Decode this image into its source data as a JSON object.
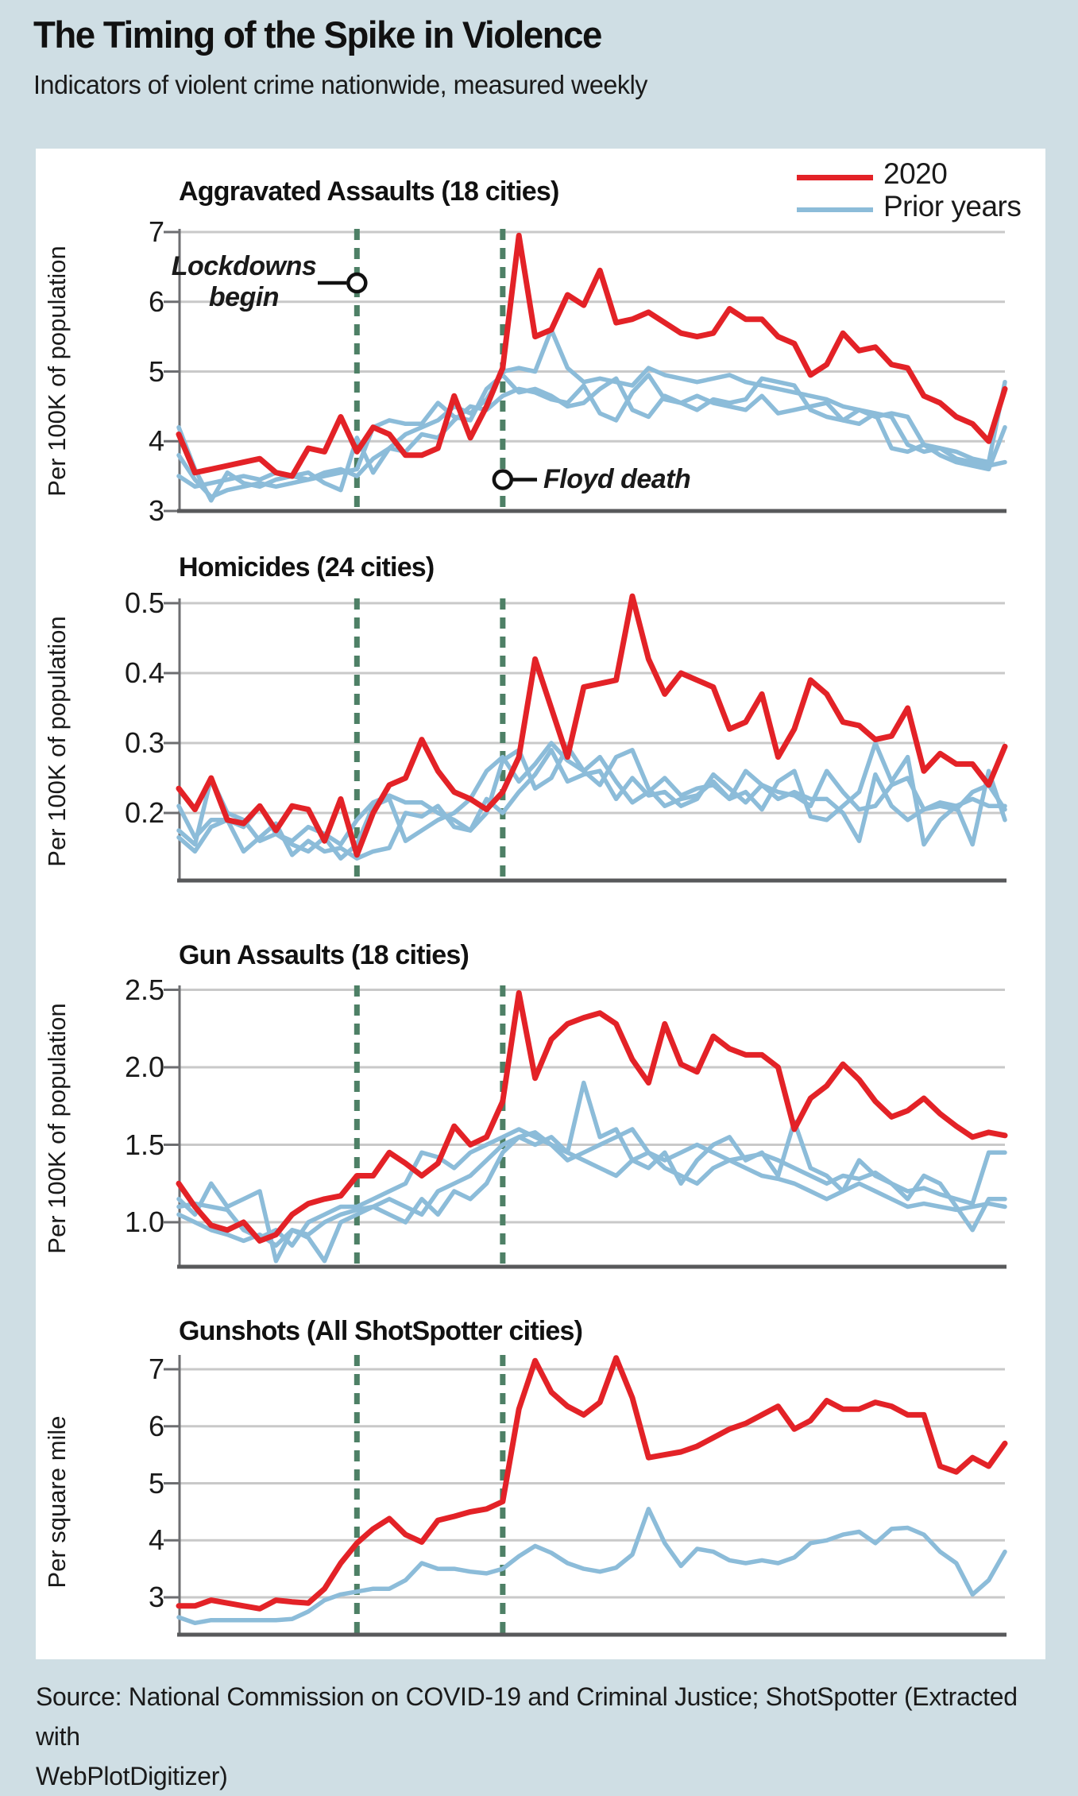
{
  "page": {
    "title": "The Timing of the Spike in Violence",
    "subtitle": "Indicators of violent crime nationwide, measured weekly",
    "source": "Source: National Commission on COVID-19 and Criminal Justice; ShotSpotter (Extracted with\nWebPlotDigitizer)"
  },
  "colors": {
    "red_2020": "#e32227",
    "blue_prior": "#8cbcd9",
    "green_dash": "#4e8066",
    "gridline": "#c9c9c9",
    "axis": "#58595b",
    "page_background": "#cfdee4",
    "panel_background": "#ffffff"
  },
  "legend": {
    "items": [
      {
        "label": "2020",
        "color": "#e32227"
      },
      {
        "label": "Prior years",
        "color": "#8cbcd9"
      }
    ]
  },
  "annotations": {
    "lockdowns": {
      "line1": "Lockdowns",
      "line2": "begin",
      "week": 12
    },
    "floyd": {
      "label": "Floyd death",
      "week": 21
    }
  },
  "chart_data": [
    {
      "type": "line",
      "title": "Aggravated Assaults (18 cities)",
      "ylabel": "Per 100K of population",
      "x_unit": "week of year",
      "x_range": [
        1,
        52
      ],
      "grid": true,
      "y_ticks": [
        3,
        4,
        5,
        6,
        7
      ],
      "y_tick_labels": [
        "3",
        "4",
        "5",
        "6",
        "7"
      ],
      "series": [
        {
          "name": "2020",
          "color_key": "red_2020",
          "values": [
            4.1,
            3.55,
            3.6,
            3.65,
            3.7,
            3.75,
            3.55,
            3.5,
            3.9,
            3.85,
            4.35,
            3.85,
            4.2,
            4.1,
            3.8,
            3.8,
            3.9,
            4.65,
            4.05,
            4.5,
            5.05,
            6.95,
            5.5,
            5.6,
            6.1,
            5.95,
            6.45,
            5.7,
            5.75,
            5.85,
            5.7,
            5.55,
            5.5,
            5.55,
            5.9,
            5.75,
            5.75,
            5.5,
            5.4,
            4.95,
            5.1,
            5.55,
            5.3,
            5.35,
            5.1,
            5.05,
            4.65,
            4.55,
            4.35,
            4.25,
            4.0,
            4.75
          ]
        },
        {
          "name": "Prior year A",
          "color_key": "blue_prior",
          "values": [
            3.5,
            3.35,
            3.4,
            3.45,
            3.5,
            3.45,
            3.55,
            3.5,
            3.45,
            3.55,
            3.6,
            3.5,
            3.75,
            3.9,
            4.1,
            4.2,
            4.3,
            4.5,
            4.4,
            4.6,
            5.0,
            5.05,
            5.0,
            5.6,
            5.05,
            4.85,
            4.9,
            4.85,
            4.8,
            5.05,
            4.95,
            4.9,
            4.85,
            4.9,
            4.95,
            4.85,
            4.8,
            4.75,
            4.7,
            4.65,
            4.6,
            4.5,
            4.45,
            4.35,
            4.4,
            4.35,
            3.95,
            3.9,
            3.85,
            3.75,
            3.7,
            4.85
          ]
        },
        {
          "name": "Prior year B",
          "color_key": "blue_prior",
          "values": [
            4.2,
            3.6,
            3.15,
            3.55,
            3.4,
            3.35,
            3.45,
            3.5,
            3.55,
            3.4,
            3.3,
            4.05,
            3.55,
            3.9,
            3.85,
            4.1,
            4.05,
            4.3,
            4.5,
            4.45,
            4.65,
            4.75,
            4.7,
            4.6,
            4.55,
            4.8,
            4.4,
            4.3,
            4.7,
            4.95,
            4.6,
            4.55,
            4.45,
            4.6,
            4.55,
            4.6,
            4.9,
            4.85,
            4.8,
            4.45,
            4.35,
            4.3,
            4.45,
            4.4,
            3.9,
            3.85,
            3.95,
            3.8,
            3.7,
            3.65,
            3.6,
            4.2
          ]
        },
        {
          "name": "Prior year C",
          "color_key": "blue_prior",
          "values": [
            3.8,
            3.45,
            3.2,
            3.3,
            3.35,
            3.4,
            3.35,
            3.4,
            3.45,
            3.5,
            3.55,
            3.6,
            4.2,
            4.3,
            4.25,
            4.25,
            4.55,
            4.35,
            4.3,
            4.75,
            4.95,
            4.7,
            4.75,
            4.65,
            4.5,
            4.55,
            4.75,
            4.9,
            4.45,
            4.35,
            4.65,
            4.55,
            4.65,
            4.55,
            4.5,
            4.45,
            4.65,
            4.4,
            4.45,
            4.5,
            4.55,
            4.3,
            4.25,
            4.4,
            4.35,
            3.95,
            3.85,
            3.9,
            3.75,
            3.7,
            3.65,
            3.7
          ]
        }
      ]
    },
    {
      "type": "line",
      "title": "Homicides (24 cities)",
      "ylabel": "Per 100K of population",
      "x_unit": "week of year",
      "x_range": [
        1,
        52
      ],
      "grid": true,
      "y_ticks": [
        0.2,
        0.3,
        0.4,
        0.5
      ],
      "y_tick_labels": [
        "0.2",
        "0.3",
        "0.4",
        "0.5"
      ],
      "series": [
        {
          "name": "2020",
          "color_key": "red_2020",
          "values": [
            0.235,
            0.205,
            0.25,
            0.19,
            0.185,
            0.21,
            0.175,
            0.21,
            0.205,
            0.16,
            0.22,
            0.14,
            0.2,
            0.24,
            0.25,
            0.305,
            0.26,
            0.23,
            0.22,
            0.205,
            0.23,
            0.28,
            0.42,
            0.35,
            0.28,
            0.38,
            0.385,
            0.39,
            0.51,
            0.42,
            0.37,
            0.4,
            0.39,
            0.38,
            0.32,
            0.33,
            0.37,
            0.28,
            0.32,
            0.39,
            0.37,
            0.33,
            0.325,
            0.305,
            0.31,
            0.35,
            0.26,
            0.285,
            0.27,
            0.27,
            0.24,
            0.295
          ]
        },
        {
          "name": "Prior year A",
          "color_key": "blue_prior",
          "values": [
            0.21,
            0.165,
            0.19,
            0.19,
            0.18,
            0.21,
            0.17,
            0.16,
            0.18,
            0.17,
            0.155,
            0.19,
            0.215,
            0.225,
            0.215,
            0.215,
            0.2,
            0.19,
            0.175,
            0.2,
            0.275,
            0.29,
            0.235,
            0.25,
            0.295,
            0.26,
            0.24,
            0.28,
            0.29,
            0.235,
            0.21,
            0.22,
            0.225,
            0.245,
            0.22,
            0.26,
            0.24,
            0.23,
            0.225,
            0.21,
            0.26,
            0.23,
            0.205,
            0.21,
            0.24,
            0.25,
            0.205,
            0.21,
            0.205,
            0.23,
            0.24,
            0.205
          ]
        },
        {
          "name": "Prior year B",
          "color_key": "blue_prior",
          "values": [
            0.175,
            0.155,
            0.25,
            0.2,
            0.19,
            0.16,
            0.17,
            0.155,
            0.145,
            0.165,
            0.135,
            0.155,
            0.21,
            0.22,
            0.16,
            0.175,
            0.19,
            0.2,
            0.22,
            0.26,
            0.28,
            0.245,
            0.27,
            0.3,
            0.275,
            0.26,
            0.28,
            0.245,
            0.215,
            0.23,
            0.25,
            0.225,
            0.235,
            0.24,
            0.22,
            0.23,
            0.205,
            0.245,
            0.26,
            0.195,
            0.19,
            0.21,
            0.23,
            0.3,
            0.245,
            0.28,
            0.155,
            0.19,
            0.21,
            0.155,
            0.26,
            0.19
          ]
        },
        {
          "name": "Prior year C",
          "color_key": "blue_prior",
          "values": [
            0.165,
            0.145,
            0.18,
            0.19,
            0.145,
            0.165,
            0.185,
            0.14,
            0.16,
            0.145,
            0.15,
            0.135,
            0.145,
            0.15,
            0.2,
            0.195,
            0.21,
            0.18,
            0.175,
            0.22,
            0.2,
            0.23,
            0.255,
            0.29,
            0.245,
            0.255,
            0.26,
            0.22,
            0.25,
            0.225,
            0.23,
            0.21,
            0.22,
            0.255,
            0.235,
            0.215,
            0.24,
            0.22,
            0.23,
            0.22,
            0.22,
            0.2,
            0.16,
            0.255,
            0.21,
            0.19,
            0.205,
            0.215,
            0.21,
            0.22,
            0.21,
            0.21
          ]
        }
      ]
    },
    {
      "type": "line",
      "title": "Gun Assaults (18 cities)",
      "ylabel": "Per 100K of population",
      "x_unit": "week of year",
      "x_range": [
        1,
        52
      ],
      "grid": true,
      "y_ticks": [
        1.0,
        1.5,
        2.0,
        2.5
      ],
      "y_tick_labels": [
        "1.0",
        "1.5",
        "2.0",
        "2.5"
      ],
      "series": [
        {
          "name": "2020",
          "color_key": "red_2020",
          "values": [
            1.25,
            1.1,
            0.98,
            0.95,
            1.0,
            0.88,
            0.92,
            1.05,
            1.12,
            1.15,
            1.17,
            1.3,
            1.3,
            1.45,
            1.38,
            1.3,
            1.38,
            1.62,
            1.5,
            1.55,
            1.78,
            2.48,
            1.93,
            2.18,
            2.28,
            2.32,
            2.35,
            2.28,
            2.05,
            1.9,
            2.28,
            2.02,
            1.97,
            2.2,
            2.12,
            2.08,
            2.08,
            2.0,
            1.6,
            1.8,
            1.88,
            2.02,
            1.92,
            1.78,
            1.68,
            1.72,
            1.8,
            1.7,
            1.62,
            1.55,
            1.58,
            1.56
          ]
        },
        {
          "name": "Prior year A",
          "color_key": "blue_prior",
          "values": [
            1.15,
            1.05,
            1.25,
            1.1,
            1.15,
            1.2,
            0.75,
            0.95,
            0.9,
            0.75,
            1.0,
            1.05,
            1.1,
            1.05,
            1.0,
            1.15,
            1.05,
            1.2,
            1.15,
            1.25,
            1.45,
            1.55,
            1.5,
            1.55,
            1.45,
            1.9,
            1.55,
            1.6,
            1.4,
            1.35,
            1.45,
            1.25,
            1.4,
            1.5,
            1.55,
            1.4,
            1.45,
            1.3,
            1.65,
            1.35,
            1.3,
            1.2,
            1.4,
            1.3,
            1.25,
            1.15,
            1.3,
            1.25,
            1.1,
            0.95,
            1.15,
            1.15
          ]
        },
        {
          "name": "Prior year B",
          "color_key": "blue_prior",
          "values": [
            1.1,
            1.12,
            1.1,
            1.08,
            0.95,
            0.9,
            0.95,
            0.85,
            1.0,
            1.05,
            1.1,
            1.1,
            1.15,
            1.2,
            1.25,
            1.45,
            1.42,
            1.35,
            1.45,
            1.5,
            1.55,
            1.6,
            1.55,
            1.5,
            1.4,
            1.45,
            1.5,
            1.55,
            1.6,
            1.45,
            1.4,
            1.45,
            1.5,
            1.45,
            1.4,
            1.42,
            1.44,
            1.4,
            1.35,
            1.3,
            1.25,
            1.3,
            1.28,
            1.32,
            1.25,
            1.2,
            1.22,
            1.18,
            1.15,
            1.12,
            1.45,
            1.45
          ]
        },
        {
          "name": "Prior year C",
          "color_key": "blue_prior",
          "values": [
            1.05,
            1.0,
            0.95,
            0.92,
            0.88,
            0.92,
            0.85,
            0.95,
            0.92,
            1.0,
            1.05,
            1.08,
            1.1,
            1.15,
            1.1,
            1.05,
            1.2,
            1.25,
            1.3,
            1.4,
            1.5,
            1.55,
            1.58,
            1.5,
            1.45,
            1.4,
            1.35,
            1.3,
            1.4,
            1.45,
            1.35,
            1.3,
            1.25,
            1.35,
            1.4,
            1.35,
            1.3,
            1.28,
            1.25,
            1.2,
            1.15,
            1.2,
            1.25,
            1.2,
            1.15,
            1.1,
            1.12,
            1.1,
            1.08,
            1.1,
            1.12,
            1.1
          ]
        }
      ]
    },
    {
      "type": "line",
      "title": "Gunshots (All ShotSpotter cities)",
      "ylabel": "Per square mile",
      "x_unit": "week of year",
      "x_range": [
        1,
        52
      ],
      "grid": true,
      "y_ticks": [
        3,
        4,
        5,
        6,
        7
      ],
      "y_tick_labels": [
        "3",
        "4",
        "5",
        "6",
        "7"
      ],
      "series": [
        {
          "name": "2020",
          "color_key": "red_2020",
          "values": [
            2.85,
            2.85,
            2.95,
            2.9,
            2.85,
            2.8,
            2.95,
            2.92,
            2.9,
            3.15,
            3.6,
            3.95,
            4.2,
            4.38,
            4.1,
            3.97,
            4.35,
            4.42,
            4.5,
            4.55,
            4.68,
            6.3,
            7.15,
            6.6,
            6.35,
            6.2,
            6.42,
            7.2,
            6.5,
            5.45,
            5.5,
            5.55,
            5.65,
            5.8,
            5.95,
            6.05,
            6.2,
            6.35,
            5.95,
            6.1,
            6.45,
            6.3,
            6.3,
            6.42,
            6.35,
            6.2,
            6.2,
            5.3,
            5.2,
            5.45,
            5.3,
            5.7
          ]
        },
        {
          "name": "Prior years",
          "color_key": "blue_prior",
          "values": [
            2.65,
            2.55,
            2.6,
            2.6,
            2.6,
            2.6,
            2.6,
            2.62,
            2.75,
            2.95,
            3.05,
            3.1,
            3.15,
            3.15,
            3.3,
            3.6,
            3.5,
            3.5,
            3.45,
            3.42,
            3.5,
            3.72,
            3.9,
            3.78,
            3.6,
            3.5,
            3.45,
            3.52,
            3.75,
            4.55,
            3.95,
            3.55,
            3.85,
            3.8,
            3.65,
            3.6,
            3.65,
            3.6,
            3.7,
            3.95,
            4.0,
            4.1,
            4.15,
            3.95,
            4.2,
            4.22,
            4.1,
            3.8,
            3.6,
            3.05,
            3.3,
            3.8
          ]
        }
      ]
    }
  ]
}
